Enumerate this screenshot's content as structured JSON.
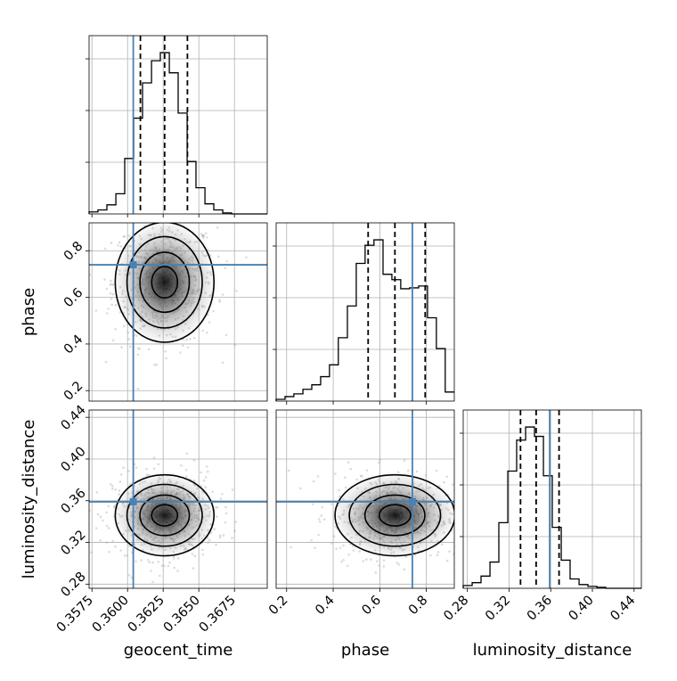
{
  "chart_data": {
    "type": "corner",
    "parameters": [
      "geocent_time",
      "phase",
      "luminosity_distance"
    ],
    "truths": {
      "geocent_time": 0.3604,
      "phase": 0.74,
      "luminosity_distance": 0.359
    },
    "truth_color": "#4682b4",
    "ranges": {
      "geocent_time": [
        0.3573,
        0.3698
      ],
      "phase": [
        0.155,
        0.92
      ],
      "luminosity_distance": [
        0.276,
        0.447
      ]
    },
    "ticks": {
      "geocent_time": {
        "values": [
          0.3575,
          0.36,
          0.3625,
          0.365,
          0.3675
        ],
        "labels": [
          "0.3575",
          "0.3600",
          "0.3625",
          "0.3650",
          "0.3675"
        ]
      },
      "phase": {
        "values": [
          0.2,
          0.4,
          0.6,
          0.8
        ],
        "labels": [
          "0.2",
          "0.4",
          "0.6",
          "0.8"
        ]
      },
      "luminosity_distance": {
        "values": [
          0.28,
          0.32,
          0.36,
          0.4,
          0.44
        ],
        "labels": [
          "0.28",
          "0.32",
          "0.36",
          "0.40",
          "0.44"
        ]
      }
    },
    "histograms": {
      "geocent_time": {
        "edges": [
          0.3573,
          0.35792,
          0.35855,
          0.35918,
          0.3598,
          0.36043,
          0.36105,
          0.36168,
          0.3623,
          0.36293,
          0.36355,
          0.36418,
          0.3648,
          0.36543,
          0.36605,
          0.36668,
          0.3673,
          0.36793,
          0.36855,
          0.36918,
          0.3698
        ],
        "counts": [
          2,
          4,
          9,
          20,
          55,
          95,
          130,
          152,
          160,
          140,
          100,
          52,
          26,
          10,
          4,
          1,
          0,
          0,
          0,
          0
        ],
        "quantiles": [
          0.3609,
          0.3626,
          0.3642
        ]
      },
      "phase": {
        "edges": [
          0.155,
          0.193,
          0.231,
          0.27,
          0.308,
          0.346,
          0.384,
          0.422,
          0.461,
          0.499,
          0.537,
          0.575,
          0.614,
          0.652,
          0.69,
          0.728,
          0.767,
          0.805,
          0.843,
          0.881,
          0.92
        ],
        "counts": [
          2,
          5,
          8,
          13,
          18,
          27,
          40,
          70,
          105,
          152,
          172,
          178,
          140,
          134,
          124,
          125,
          127,
          92,
          58,
          10
        ],
        "quantiles": [
          0.55,
          0.665,
          0.795
        ]
      },
      "luminosity_distance": {
        "edges": [
          0.276,
          0.2846,
          0.2931,
          0.3017,
          0.3102,
          0.3188,
          0.3273,
          0.3359,
          0.3444,
          0.353,
          0.3615,
          0.3701,
          0.3786,
          0.3872,
          0.3957,
          0.4043,
          0.4128,
          0.4214,
          0.4299,
          0.4385,
          0.447
        ],
        "counts": [
          3,
          6,
          13,
          28,
          70,
          125,
          158,
          172,
          162,
          120,
          65,
          30,
          10,
          4,
          2,
          1,
          0,
          0,
          0,
          0
        ],
        "quantiles": [
          0.331,
          0.346,
          0.368
        ]
      }
    },
    "title": "",
    "xlabel": "",
    "ylabel": ""
  }
}
